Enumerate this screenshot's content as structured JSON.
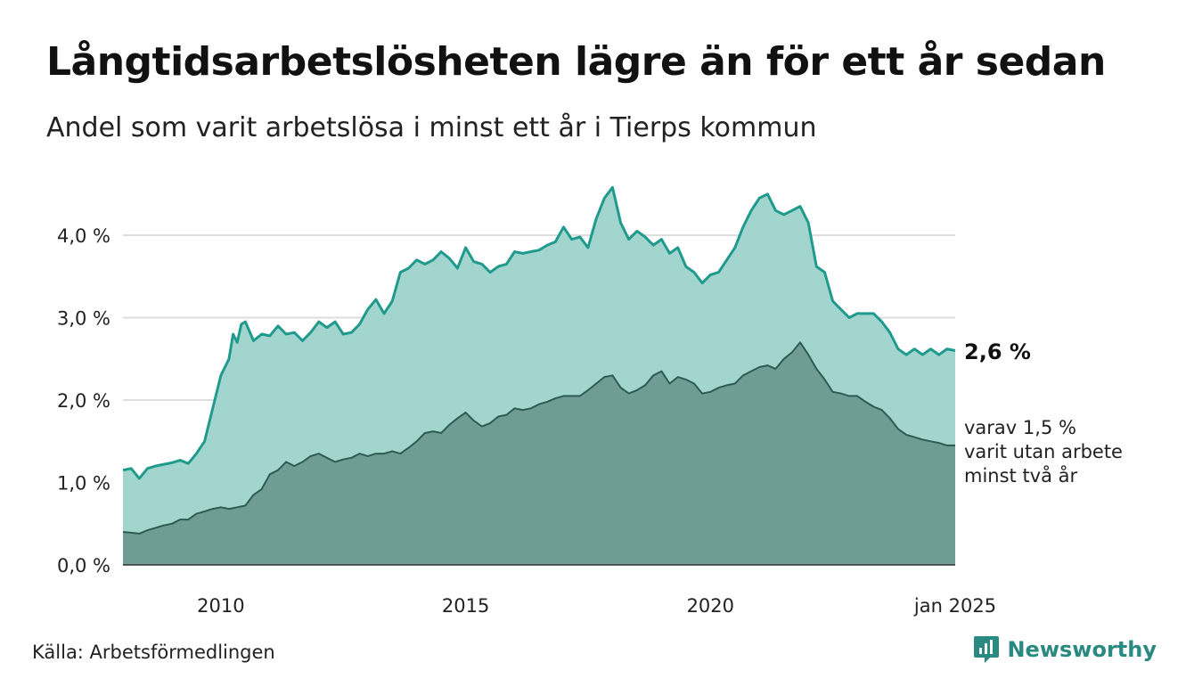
{
  "header": {
    "title": "Långtidsarbetslösheten lägre än för ett år sedan",
    "subtitle": "Andel som varit arbetslösa i minst ett år i Tierps kommun"
  },
  "footer": {
    "source": "Källa: Arbetsförmedlingen",
    "brand": "Newsworthy",
    "brand_icon": "newsworthy-logo-icon"
  },
  "colors": {
    "total_line": "#1f9a8c",
    "total_fill": "#a3d5cf",
    "sub_line": "#2f5b55",
    "sub_fill": "#6f9c95",
    "grid": "#dddddd",
    "brand": "#2a8a81"
  },
  "chart_data": {
    "type": "area",
    "x_unit": "month",
    "x_start": "2008-01",
    "x_end": "2025-01",
    "x_ticks": [
      {
        "date": "2010-01",
        "label": "2010"
      },
      {
        "date": "2015-01",
        "label": "2015"
      },
      {
        "date": "2020-01",
        "label": "2020"
      },
      {
        "date": "2025-01",
        "label": "jan 2025"
      }
    ],
    "y_ticks": [
      {
        "value": 0,
        "label": "0,0 %"
      },
      {
        "value": 1,
        "label": "1,0 %"
      },
      {
        "value": 2,
        "label": "2,0 %"
      },
      {
        "value": 3,
        "label": "3,0 %"
      },
      {
        "value": 4,
        "label": "4,0 %"
      }
    ],
    "ylim": [
      0,
      4.6
    ],
    "grid": true,
    "series": [
      {
        "key": "total",
        "end_label": "2,6 %",
        "points": [
          [
            "2008-01",
            1.15
          ],
          [
            "2008-03",
            1.17
          ],
          [
            "2008-05",
            1.05
          ],
          [
            "2008-07",
            1.17
          ],
          [
            "2008-09",
            1.2
          ],
          [
            "2008-11",
            1.22
          ],
          [
            "2009-01",
            1.24
          ],
          [
            "2009-03",
            1.27
          ],
          [
            "2009-05",
            1.23
          ],
          [
            "2009-07",
            1.35
          ],
          [
            "2009-09",
            1.5
          ],
          [
            "2009-11",
            1.9
          ],
          [
            "2010-01",
            2.3
          ],
          [
            "2010-03",
            2.5
          ],
          [
            "2010-04",
            2.8
          ],
          [
            "2010-05",
            2.7
          ],
          [
            "2010-06",
            2.92
          ],
          [
            "2010-07",
            2.95
          ],
          [
            "2010-09",
            2.72
          ],
          [
            "2010-11",
            2.8
          ],
          [
            "2011-01",
            2.78
          ],
          [
            "2011-03",
            2.9
          ],
          [
            "2011-05",
            2.8
          ],
          [
            "2011-07",
            2.82
          ],
          [
            "2011-09",
            2.72
          ],
          [
            "2011-11",
            2.82
          ],
          [
            "2012-01",
            2.95
          ],
          [
            "2012-03",
            2.88
          ],
          [
            "2012-05",
            2.95
          ],
          [
            "2012-07",
            2.8
          ],
          [
            "2012-09",
            2.82
          ],
          [
            "2012-11",
            2.92
          ],
          [
            "2013-01",
            3.1
          ],
          [
            "2013-03",
            3.22
          ],
          [
            "2013-05",
            3.05
          ],
          [
            "2013-07",
            3.2
          ],
          [
            "2013-09",
            3.55
          ],
          [
            "2013-11",
            3.6
          ],
          [
            "2014-01",
            3.7
          ],
          [
            "2014-03",
            3.65
          ],
          [
            "2014-05",
            3.7
          ],
          [
            "2014-07",
            3.8
          ],
          [
            "2014-09",
            3.72
          ],
          [
            "2014-11",
            3.6
          ],
          [
            "2015-01",
            3.85
          ],
          [
            "2015-03",
            3.68
          ],
          [
            "2015-05",
            3.65
          ],
          [
            "2015-07",
            3.55
          ],
          [
            "2015-09",
            3.62
          ],
          [
            "2015-11",
            3.65
          ],
          [
            "2016-01",
            3.8
          ],
          [
            "2016-03",
            3.78
          ],
          [
            "2016-05",
            3.8
          ],
          [
            "2016-07",
            3.82
          ],
          [
            "2016-09",
            3.88
          ],
          [
            "2016-11",
            3.92
          ],
          [
            "2017-01",
            4.1
          ],
          [
            "2017-03",
            3.95
          ],
          [
            "2017-05",
            3.98
          ],
          [
            "2017-07",
            3.85
          ],
          [
            "2017-09",
            4.2
          ],
          [
            "2017-11",
            4.45
          ],
          [
            "2018-01",
            4.58
          ],
          [
            "2018-03",
            4.15
          ],
          [
            "2018-05",
            3.95
          ],
          [
            "2018-07",
            4.05
          ],
          [
            "2018-09",
            3.98
          ],
          [
            "2018-11",
            3.88
          ],
          [
            "2019-01",
            3.95
          ],
          [
            "2019-03",
            3.78
          ],
          [
            "2019-05",
            3.85
          ],
          [
            "2019-07",
            3.62
          ],
          [
            "2019-09",
            3.55
          ],
          [
            "2019-11",
            3.42
          ],
          [
            "2020-01",
            3.52
          ],
          [
            "2020-03",
            3.55
          ],
          [
            "2020-05",
            3.7
          ],
          [
            "2020-07",
            3.85
          ],
          [
            "2020-09",
            4.1
          ],
          [
            "2020-11",
            4.3
          ],
          [
            "2021-01",
            4.45
          ],
          [
            "2021-03",
            4.5
          ],
          [
            "2021-05",
            4.3
          ],
          [
            "2021-07",
            4.25
          ],
          [
            "2021-09",
            4.3
          ],
          [
            "2021-11",
            4.35
          ],
          [
            "2022-01",
            4.15
          ],
          [
            "2022-03",
            3.62
          ],
          [
            "2022-05",
            3.55
          ],
          [
            "2022-07",
            3.2
          ],
          [
            "2022-09",
            3.1
          ],
          [
            "2022-11",
            3.0
          ],
          [
            "2023-01",
            3.05
          ],
          [
            "2023-03",
            3.05
          ],
          [
            "2023-05",
            3.05
          ],
          [
            "2023-07",
            2.95
          ],
          [
            "2023-09",
            2.82
          ],
          [
            "2023-11",
            2.62
          ],
          [
            "2024-01",
            2.55
          ],
          [
            "2024-03",
            2.62
          ],
          [
            "2024-05",
            2.55
          ],
          [
            "2024-07",
            2.62
          ],
          [
            "2024-09",
            2.55
          ],
          [
            "2024-11",
            2.62
          ],
          [
            "2025-01",
            2.6
          ]
        ]
      },
      {
        "key": "two_years",
        "end_label": [
          "varav 1,5 %",
          "varit utan arbete",
          "minst två år"
        ],
        "points": [
          [
            "2008-01",
            0.4
          ],
          [
            "2008-03",
            0.39
          ],
          [
            "2008-05",
            0.38
          ],
          [
            "2008-07",
            0.42
          ],
          [
            "2008-09",
            0.45
          ],
          [
            "2008-11",
            0.48
          ],
          [
            "2009-01",
            0.5
          ],
          [
            "2009-03",
            0.55
          ],
          [
            "2009-05",
            0.55
          ],
          [
            "2009-07",
            0.62
          ],
          [
            "2009-09",
            0.65
          ],
          [
            "2009-11",
            0.68
          ],
          [
            "2010-01",
            0.7
          ],
          [
            "2010-03",
            0.68
          ],
          [
            "2010-05",
            0.7
          ],
          [
            "2010-07",
            0.72
          ],
          [
            "2010-09",
            0.85
          ],
          [
            "2010-11",
            0.92
          ],
          [
            "2011-01",
            1.1
          ],
          [
            "2011-03",
            1.15
          ],
          [
            "2011-05",
            1.25
          ],
          [
            "2011-07",
            1.2
          ],
          [
            "2011-09",
            1.25
          ],
          [
            "2011-11",
            1.32
          ],
          [
            "2012-01",
            1.35
          ],
          [
            "2012-03",
            1.3
          ],
          [
            "2012-05",
            1.25
          ],
          [
            "2012-07",
            1.28
          ],
          [
            "2012-09",
            1.3
          ],
          [
            "2012-11",
            1.35
          ],
          [
            "2013-01",
            1.32
          ],
          [
            "2013-03",
            1.35
          ],
          [
            "2013-05",
            1.35
          ],
          [
            "2013-07",
            1.38
          ],
          [
            "2013-09",
            1.35
          ],
          [
            "2013-11",
            1.42
          ],
          [
            "2014-01",
            1.5
          ],
          [
            "2014-03",
            1.6
          ],
          [
            "2014-05",
            1.62
          ],
          [
            "2014-07",
            1.6
          ],
          [
            "2014-09",
            1.7
          ],
          [
            "2014-11",
            1.78
          ],
          [
            "2015-01",
            1.85
          ],
          [
            "2015-03",
            1.75
          ],
          [
            "2015-05",
            1.68
          ],
          [
            "2015-07",
            1.72
          ],
          [
            "2015-09",
            1.8
          ],
          [
            "2015-11",
            1.82
          ],
          [
            "2016-01",
            1.9
          ],
          [
            "2016-03",
            1.88
          ],
          [
            "2016-05",
            1.9
          ],
          [
            "2016-07",
            1.95
          ],
          [
            "2016-09",
            1.98
          ],
          [
            "2016-11",
            2.02
          ],
          [
            "2017-01",
            2.05
          ],
          [
            "2017-03",
            2.05
          ],
          [
            "2017-05",
            2.05
          ],
          [
            "2017-07",
            2.12
          ],
          [
            "2017-09",
            2.2
          ],
          [
            "2017-11",
            2.28
          ],
          [
            "2018-01",
            2.3
          ],
          [
            "2018-03",
            2.15
          ],
          [
            "2018-05",
            2.08
          ],
          [
            "2018-07",
            2.12
          ],
          [
            "2018-09",
            2.18
          ],
          [
            "2018-11",
            2.3
          ],
          [
            "2019-01",
            2.35
          ],
          [
            "2019-03",
            2.2
          ],
          [
            "2019-05",
            2.28
          ],
          [
            "2019-07",
            2.25
          ],
          [
            "2019-09",
            2.2
          ],
          [
            "2019-11",
            2.08
          ],
          [
            "2020-01",
            2.1
          ],
          [
            "2020-03",
            2.15
          ],
          [
            "2020-05",
            2.18
          ],
          [
            "2020-07",
            2.2
          ],
          [
            "2020-09",
            2.3
          ],
          [
            "2020-11",
            2.35
          ],
          [
            "2021-01",
            2.4
          ],
          [
            "2021-03",
            2.42
          ],
          [
            "2021-05",
            2.38
          ],
          [
            "2021-07",
            2.5
          ],
          [
            "2021-09",
            2.58
          ],
          [
            "2021-11",
            2.7
          ],
          [
            "2022-01",
            2.55
          ],
          [
            "2022-03",
            2.38
          ],
          [
            "2022-05",
            2.25
          ],
          [
            "2022-07",
            2.1
          ],
          [
            "2022-09",
            2.08
          ],
          [
            "2022-11",
            2.05
          ],
          [
            "2023-01",
            2.05
          ],
          [
            "2023-03",
            1.98
          ],
          [
            "2023-05",
            1.92
          ],
          [
            "2023-07",
            1.88
          ],
          [
            "2023-09",
            1.78
          ],
          [
            "2023-11",
            1.65
          ],
          [
            "2024-01",
            1.58
          ],
          [
            "2024-03",
            1.55
          ],
          [
            "2024-05",
            1.52
          ],
          [
            "2024-07",
            1.5
          ],
          [
            "2024-09",
            1.48
          ],
          [
            "2024-11",
            1.45
          ],
          [
            "2025-01",
            1.45
          ]
        ]
      }
    ]
  }
}
